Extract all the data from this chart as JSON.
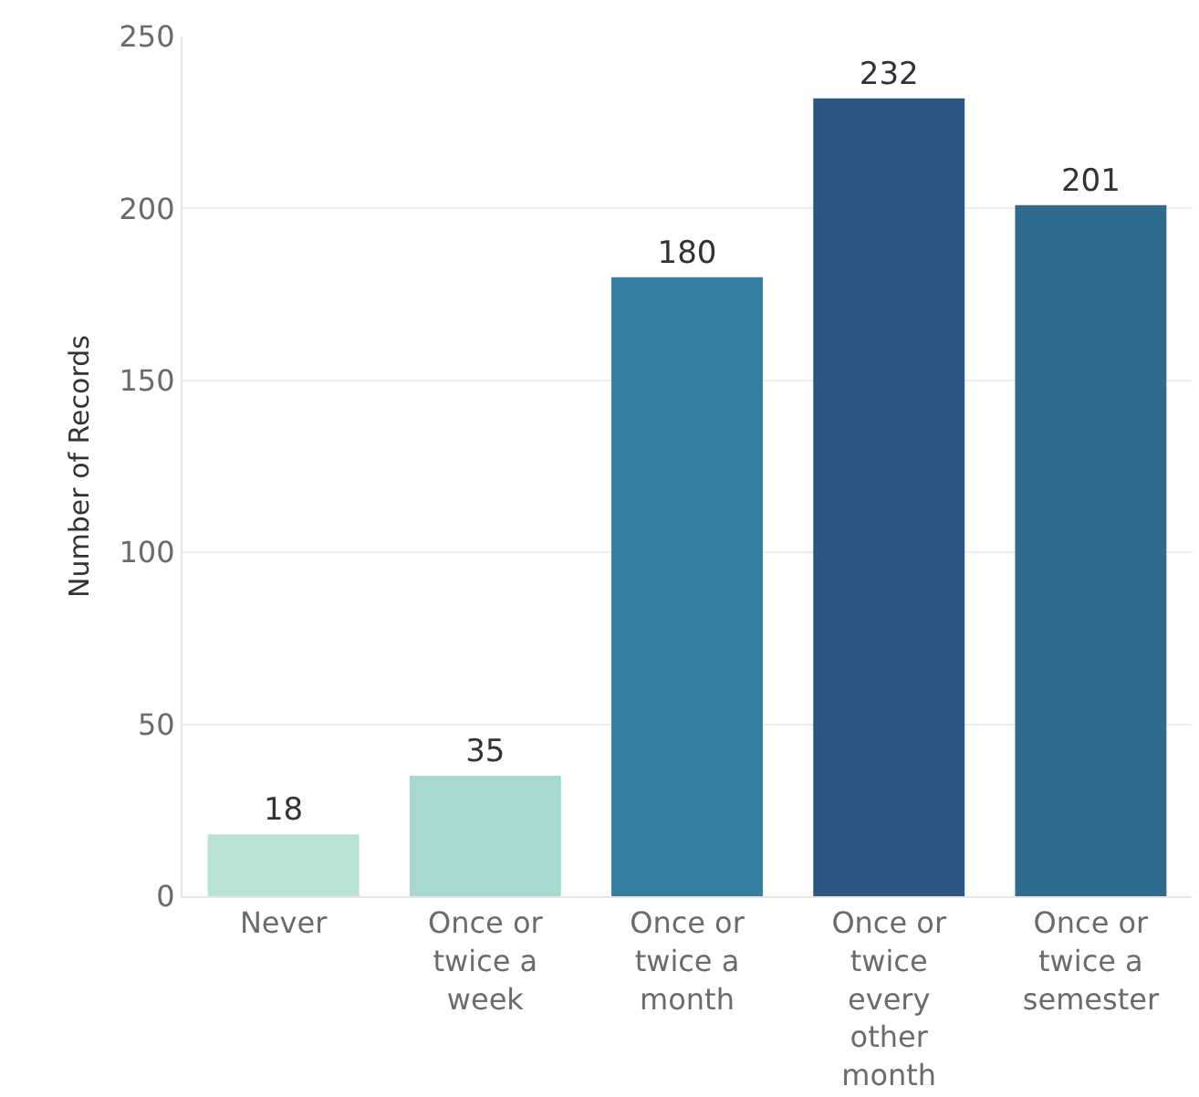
{
  "chart_data": {
    "type": "bar",
    "ylabel": "Number of Records",
    "categories": [
      "Never",
      "Once or twice a week",
      "Once or twice a month",
      "Once or twice every other month",
      "Once or twice a semester"
    ],
    "values": [
      18,
      35,
      180,
      232,
      201
    ],
    "colors": [
      "#b9e3d7",
      "#a7d9d3",
      "#347e9f",
      "#2b5782",
      "#2f6b8f"
    ],
    "ylim": [
      0,
      250
    ],
    "yticks": [
      0,
      50,
      100,
      150,
      200,
      250
    ],
    "grid": "y",
    "data_labels": true,
    "legend": false
  }
}
